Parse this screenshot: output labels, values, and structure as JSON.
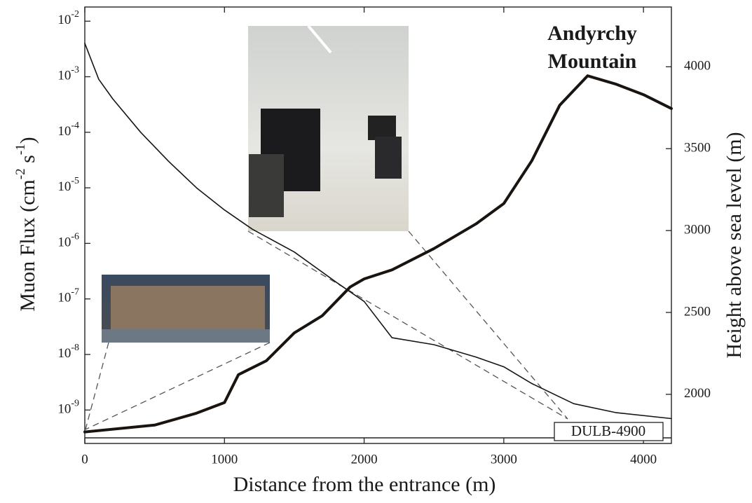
{
  "chart_data": {
    "type": "line",
    "xlabel": "Distance from the entrance (m)",
    "ylabel": {
      "text": "Muon Flux (cm",
      "sup1": "-2",
      "mid": " s",
      "sup2": "-1",
      "end": ")"
    },
    "y2label": "Height above sea level (m)",
    "xlim": [
      0,
      4200
    ],
    "xticks": [
      0,
      1000,
      2000,
      3000,
      4000
    ],
    "ylog": true,
    "ylim": [
      2.5e-10,
      0.018
    ],
    "yticks": [
      {
        "value": 0.01,
        "label": "10",
        "exponent": "-2"
      },
      {
        "value": 0.001,
        "label": "10",
        "exponent": "-3"
      },
      {
        "value": 0.0001,
        "label": "10",
        "exponent": "-4"
      },
      {
        "value": 1e-05,
        "label": "10",
        "exponent": "-5"
      },
      {
        "value": 1e-06,
        "label": "10",
        "exponent": "-6"
      },
      {
        "value": 1e-07,
        "label": "10",
        "exponent": "-7"
      },
      {
        "value": 1e-08,
        "label": "10",
        "exponent": "-8"
      },
      {
        "value": 1e-09,
        "label": "10",
        "exponent": "-9"
      }
    ],
    "y2lim": [
      1700,
      4365
    ],
    "y2ticks": [
      2000,
      2500,
      3000,
      3500,
      4000
    ],
    "annotations": [
      {
        "lines": [
          "Andyrchy",
          "Mountain"
        ]
      },
      {
        "lines": [
          "DULB-4900"
        ]
      }
    ],
    "series": [
      {
        "color": "#1a1410",
        "line_width": 1.6,
        "axis": "y",
        "x": [
          0,
          100,
          200,
          400,
          600,
          800,
          1000,
          1200,
          1500,
          1800,
          2000,
          2200,
          2500,
          2800,
          3000,
          3200,
          3500,
          3800,
          4200
        ],
        "values": [
          0.004,
          0.0009,
          0.0004,
          0.0001,
          3e-05,
          1e-05,
          4e-06,
          1.8e-06,
          7e-07,
          2e-07,
          9e-08,
          2e-08,
          1.5e-08,
          9e-09,
          6e-09,
          3e-09,
          1.3e-09,
          9e-10,
          7e-10
        ]
      },
      {
        "color": "#1a1410",
        "line_width": 4,
        "axis": "y2",
        "x": [
          0,
          500,
          800,
          1000,
          1100,
          1300,
          1500,
          1700,
          1900,
          2000,
          2200,
          2500,
          2800,
          3000,
          3200,
          3400,
          3600,
          3800,
          4000,
          4200
        ],
        "values": [
          1770,
          1812,
          1885,
          1950,
          2120,
          2205,
          2375,
          2480,
          2655,
          2705,
          2760,
          2890,
          3040,
          3165,
          3425,
          3765,
          3945,
          3895,
          3830,
          3745
        ]
      }
    ]
  }
}
